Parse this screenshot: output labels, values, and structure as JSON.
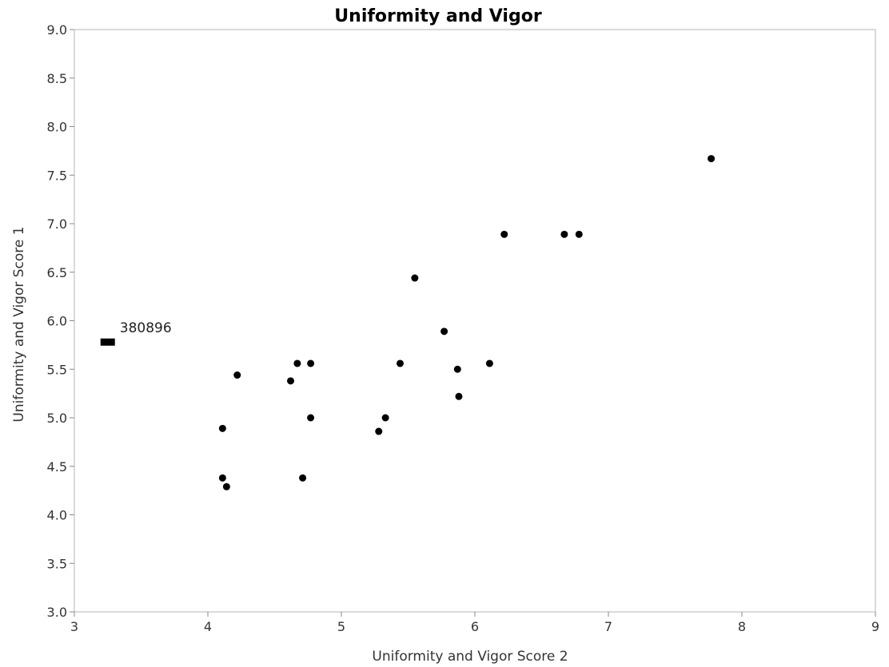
{
  "chart_data": {
    "type": "scatter",
    "title": "Uniformity and Vigor",
    "xlabel": "Uniformity and Vigor Score 2",
    "ylabel": "Uniformity and Vigor Score 1",
    "xlim": [
      3,
      9
    ],
    "ylim": [
      3.0,
      9.0
    ],
    "x_ticks": [
      "3",
      "4",
      "5",
      "6",
      "7",
      "8",
      "9"
    ],
    "y_ticks": [
      "3.0",
      "3.5",
      "4.0",
      "4.5",
      "5.0",
      "5.5",
      "6.0",
      "6.5",
      "7.0",
      "7.5",
      "8.0",
      "8.5",
      "9.0"
    ],
    "grid": false,
    "points": [
      {
        "x": 7.77,
        "y": 7.67
      },
      {
        "x": 6.22,
        "y": 6.89
      },
      {
        "x": 6.67,
        "y": 6.89
      },
      {
        "x": 6.78,
        "y": 6.89
      },
      {
        "x": 5.55,
        "y": 6.44
      },
      {
        "x": 5.77,
        "y": 5.89
      },
      {
        "x": 4.22,
        "y": 5.44
      },
      {
        "x": 4.67,
        "y": 5.56
      },
      {
        "x": 4.77,
        "y": 5.56
      },
      {
        "x": 5.44,
        "y": 5.56
      },
      {
        "x": 6.11,
        "y": 5.56
      },
      {
        "x": 5.87,
        "y": 5.5
      },
      {
        "x": 4.62,
        "y": 5.38
      },
      {
        "x": 5.88,
        "y": 5.22
      },
      {
        "x": 4.77,
        "y": 5.0
      },
      {
        "x": 5.33,
        "y": 5.0
      },
      {
        "x": 5.28,
        "y": 4.86
      },
      {
        "x": 4.11,
        "y": 4.89
      },
      {
        "x": 4.11,
        "y": 4.38
      },
      {
        "x": 4.71,
        "y": 4.38
      },
      {
        "x": 4.14,
        "y": 4.29
      }
    ],
    "highlighted_point": {
      "x": 3.25,
      "y": 5.78,
      "label": "380896"
    }
  }
}
